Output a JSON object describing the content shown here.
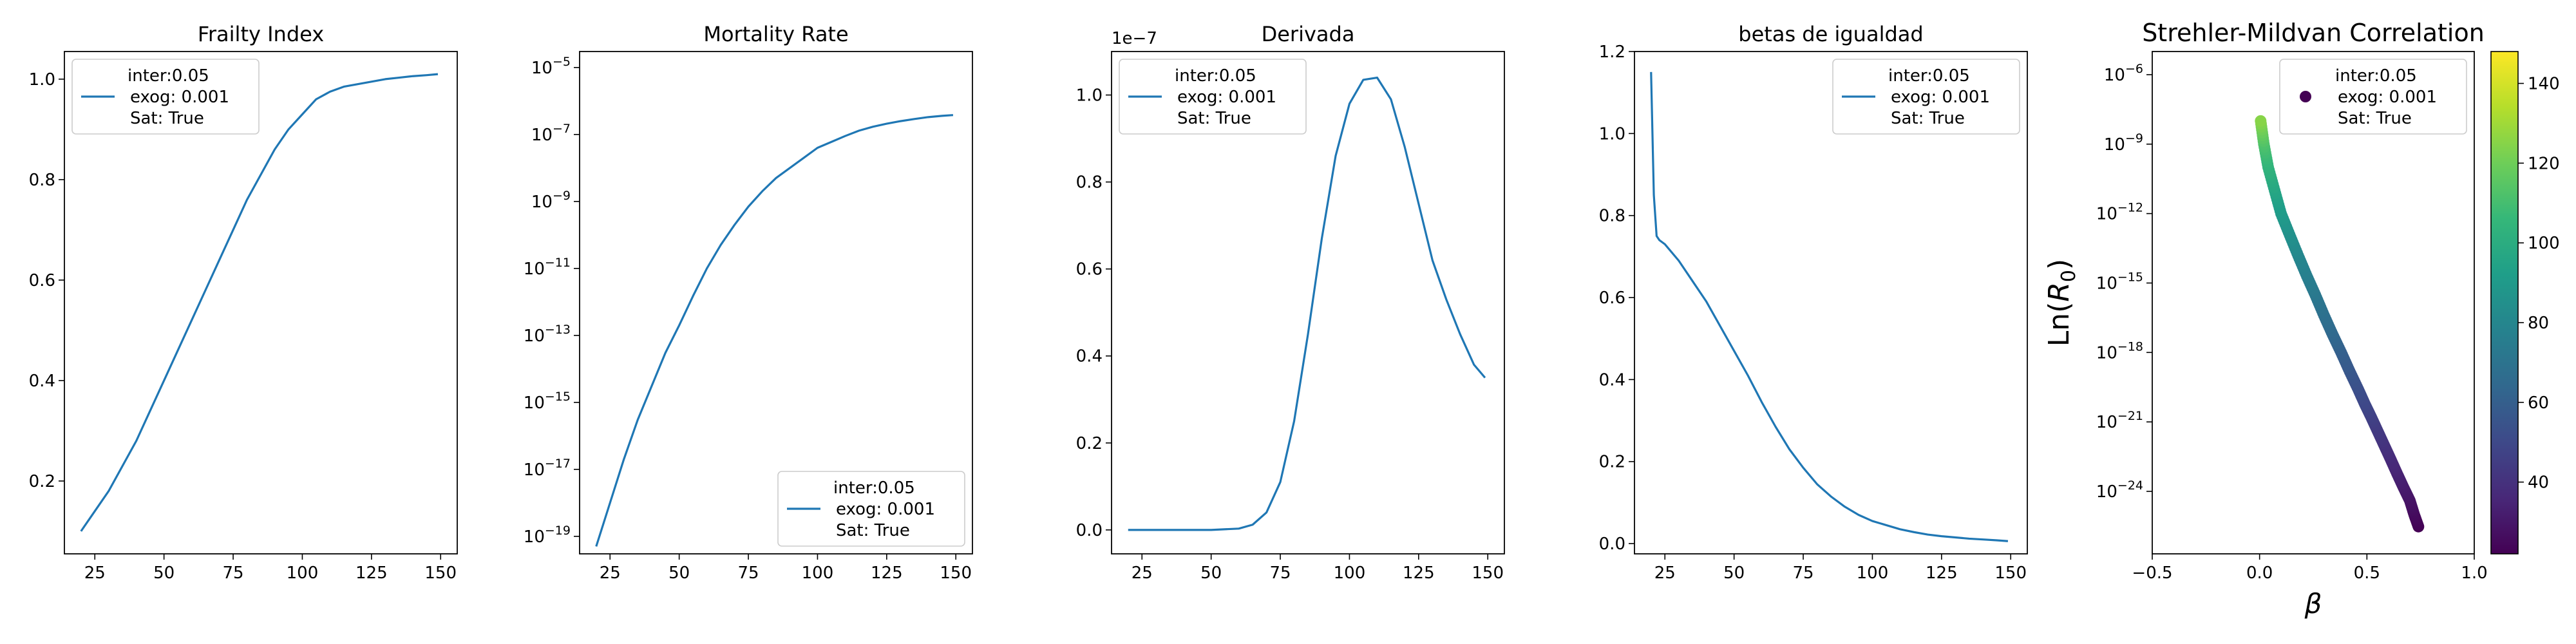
{
  "figure": {
    "colorbar": {
      "colormap": "viridis",
      "range": [
        22,
        148
      ],
      "ticks": [
        40,
        60,
        80,
        100,
        120,
        140
      ]
    }
  },
  "chart_data": [
    {
      "type": "line",
      "title": "Frailty Index",
      "xlabel": "",
      "ylabel": "",
      "xlim": [
        14,
        156
      ],
      "ylim": [
        0.055,
        1.055
      ],
      "xticks": [
        25,
        50,
        75,
        100,
        125,
        150
      ],
      "yticks": [
        {
          "value": 0.2,
          "label": "0.2"
        },
        {
          "value": 0.4,
          "label": "0.4"
        },
        {
          "value": 0.6,
          "label": "0.6"
        },
        {
          "value": 0.8,
          "label": "0.8"
        },
        {
          "value": 1.0,
          "label": "1.0"
        }
      ],
      "color": "#1f77b4",
      "legend": {
        "position": "top-left",
        "lines": [
          "inter:0.05",
          "exog: 0.001",
          "Sat: True"
        ]
      },
      "series": [
        {
          "x": [
            20,
            25,
            30,
            35,
            40,
            45,
            50,
            55,
            60,
            65,
            70,
            75,
            80,
            85,
            90,
            95,
            100,
            105,
            110,
            115,
            120,
            125,
            130,
            135,
            140,
            145,
            149
          ],
          "y": [
            0.1,
            0.14,
            0.18,
            0.23,
            0.28,
            0.34,
            0.4,
            0.46,
            0.52,
            0.58,
            0.64,
            0.7,
            0.76,
            0.81,
            0.86,
            0.9,
            0.93,
            0.96,
            0.975,
            0.985,
            0.99,
            0.995,
            1.0,
            1.003,
            1.006,
            1.008,
            1.01
          ]
        }
      ]
    },
    {
      "type": "line",
      "title": "Mortality Rate",
      "xlabel": "",
      "ylabel": "",
      "yscale": "log",
      "xlim": [
        14,
        156
      ],
      "ylim": [
        3e-20,
        3e-05
      ],
      "xticks": [
        25,
        50,
        75,
        100,
        125,
        150
      ],
      "yticks": [
        {
          "value": 1e-19,
          "base": "10",
          "exp": "−19"
        },
        {
          "value": 1e-17,
          "base": "10",
          "exp": "−17"
        },
        {
          "value": 1e-15,
          "base": "10",
          "exp": "−15"
        },
        {
          "value": 1e-13,
          "base": "10",
          "exp": "−13"
        },
        {
          "value": 1e-11,
          "base": "10",
          "exp": "−11"
        },
        {
          "value": 1e-09,
          "base": "10",
          "exp": "−9"
        },
        {
          "value": 1e-07,
          "base": "10",
          "exp": "−7"
        },
        {
          "value": 1e-05,
          "base": "10",
          "exp": "−5"
        }
      ],
      "color": "#1f77b4",
      "legend": {
        "position": "lower-right",
        "lines": [
          "inter:0.05",
          "exog: 0.001",
          "Sat: True"
        ]
      },
      "series": [
        {
          "x": [
            20,
            25,
            30,
            35,
            40,
            45,
            50,
            55,
            60,
            65,
            70,
            75,
            80,
            85,
            90,
            95,
            100,
            105,
            110,
            115,
            120,
            125,
            130,
            135,
            140,
            145,
            149
          ],
          "y": [
            5e-20,
            1e-18,
            2e-17,
            3e-16,
            3e-15,
            3e-14,
            2e-13,
            1.5e-12,
            1e-11,
            5e-11,
            2e-10,
            7e-10,
            2e-09,
            5e-09,
            1e-08,
            2e-08,
            4e-08,
            6e-08,
            9e-08,
            1.3e-07,
            1.7e-07,
            2.1e-07,
            2.5e-07,
            2.9e-07,
            3.3e-07,
            3.6e-07,
            3.8e-07
          ]
        }
      ]
    },
    {
      "type": "line",
      "title": "Derivada",
      "xlabel": "",
      "ylabel": "",
      "offset_text": "1e−7",
      "xlim": [
        14,
        156
      ],
      "ylim": [
        -0.055,
        1.1
      ],
      "xticks": [
        25,
        50,
        75,
        100,
        125,
        150
      ],
      "yticks": [
        {
          "value": 0.0,
          "label": "0.0"
        },
        {
          "value": 0.2,
          "label": "0.2"
        },
        {
          "value": 0.4,
          "label": "0.4"
        },
        {
          "value": 0.6,
          "label": "0.6"
        },
        {
          "value": 0.8,
          "label": "0.8"
        },
        {
          "value": 1.0,
          "label": "1.0"
        }
      ],
      "color": "#1f77b4",
      "legend": {
        "position": "top-left",
        "lines": [
          "inter:0.05",
          "exog: 0.001",
          "Sat: True"
        ]
      },
      "series": [
        {
          "x": [
            20,
            30,
            40,
            50,
            60,
            65,
            70,
            75,
            80,
            85,
            90,
            95,
            100,
            105,
            110,
            115,
            120,
            125,
            130,
            135,
            140,
            145,
            149
          ],
          "y": [
            0,
            0,
            0,
            0,
            0.003,
            0.012,
            0.04,
            0.11,
            0.25,
            0.45,
            0.67,
            0.86,
            0.98,
            1.035,
            1.04,
            0.99,
            0.88,
            0.75,
            0.62,
            0.53,
            0.45,
            0.38,
            0.35
          ]
        }
      ]
    },
    {
      "type": "line",
      "title": "betas de igualdad",
      "xlabel": "",
      "ylabel": "",
      "xlim": [
        14,
        156
      ],
      "ylim": [
        -0.025,
        1.2
      ],
      "xticks": [
        25,
        50,
        75,
        100,
        125,
        150
      ],
      "yticks": [
        {
          "value": 0.0,
          "label": "0.0"
        },
        {
          "value": 0.2,
          "label": "0.2"
        },
        {
          "value": 0.4,
          "label": "0.4"
        },
        {
          "value": 0.6,
          "label": "0.6"
        },
        {
          "value": 0.8,
          "label": "0.8"
        },
        {
          "value": 1.0,
          "label": "1.0"
        },
        {
          "value": 1.2,
          "label": "1.2"
        }
      ],
      "color": "#1f77b4",
      "legend": {
        "position": "top-right",
        "lines": [
          "inter:0.05",
          "exog: 0.001",
          "Sat: True"
        ]
      },
      "series": [
        {
          "x": [
            20,
            21,
            22,
            23,
            25,
            30,
            35,
            40,
            45,
            50,
            55,
            60,
            65,
            70,
            75,
            80,
            85,
            90,
            95,
            100,
            105,
            110,
            115,
            120,
            125,
            130,
            135,
            140,
            145,
            149
          ],
          "y": [
            1.15,
            0.85,
            0.75,
            0.74,
            0.73,
            0.69,
            0.64,
            0.59,
            0.53,
            0.47,
            0.41,
            0.345,
            0.285,
            0.23,
            0.185,
            0.145,
            0.115,
            0.09,
            0.07,
            0.055,
            0.045,
            0.035,
            0.028,
            0.022,
            0.018,
            0.015,
            0.012,
            0.01,
            0.008,
            0.006
          ]
        }
      ]
    },
    {
      "type": "scatter",
      "title": "Strehler-Mildvan Correlation",
      "xlabel": "β",
      "ylabel_parts": [
        "Ln(",
        "R",
        "0",
        ")"
      ],
      "yscale": "log",
      "xlim": [
        -0.5,
        1.0
      ],
      "ylim": [
        2e-27,
        1e-05
      ],
      "xticks": [
        {
          "value": -0.5,
          "label": "−0.5"
        },
        {
          "value": 0.0,
          "label": "0.0"
        },
        {
          "value": 0.5,
          "label": "0.5"
        },
        {
          "value": 1.0,
          "label": "1.0"
        }
      ],
      "yticks": [
        {
          "value": 1e-24,
          "base": "10",
          "exp": "−24"
        },
        {
          "value": 1e-21,
          "base": "10",
          "exp": "−21"
        },
        {
          "value": 1e-18,
          "base": "10",
          "exp": "−18"
        },
        {
          "value": 1e-15,
          "base": "10",
          "exp": "−15"
        },
        {
          "value": 1e-12,
          "base": "10",
          "exp": "−12"
        },
        {
          "value": 1e-09,
          "base": "10",
          "exp": "−9"
        },
        {
          "value": 1e-06,
          "base": "10",
          "exp": "−6"
        }
      ],
      "legend": {
        "position": "top-right",
        "marker_color": "#440154",
        "lines": [
          "inter:0.05",
          "exog: 0.001",
          "Sat: True"
        ]
      },
      "color_by": "age",
      "series": [
        {
          "x": [
            0.74,
            0.72,
            0.7,
            0.67,
            0.64,
            0.61,
            0.58,
            0.55,
            0.52,
            0.49,
            0.46,
            0.42,
            0.38,
            0.34,
            0.3,
            0.26,
            0.22,
            0.18,
            0.14,
            0.1,
            0.07,
            0.04,
            0.02,
            0.005
          ],
          "y": [
            3e-26,
            1e-25,
            4e-25,
            1.5e-24,
            6e-24,
            2.5e-23,
            1e-22,
            4e-22,
            1.6e-21,
            6e-21,
            2.5e-20,
            1.5e-19,
            1e-18,
            6e-18,
            4e-17,
            3e-16,
            2e-15,
            1.5e-14,
            1.2e-13,
            1e-12,
            1e-11,
            1e-10,
            1e-09,
            1e-08
          ],
          "c": [
            22,
            25,
            28,
            31,
            34,
            37,
            40,
            43,
            46,
            49,
            52,
            56,
            60,
            64,
            68,
            72,
            76,
            80,
            85,
            90,
            96,
            103,
            112,
            125
          ]
        }
      ]
    }
  ]
}
